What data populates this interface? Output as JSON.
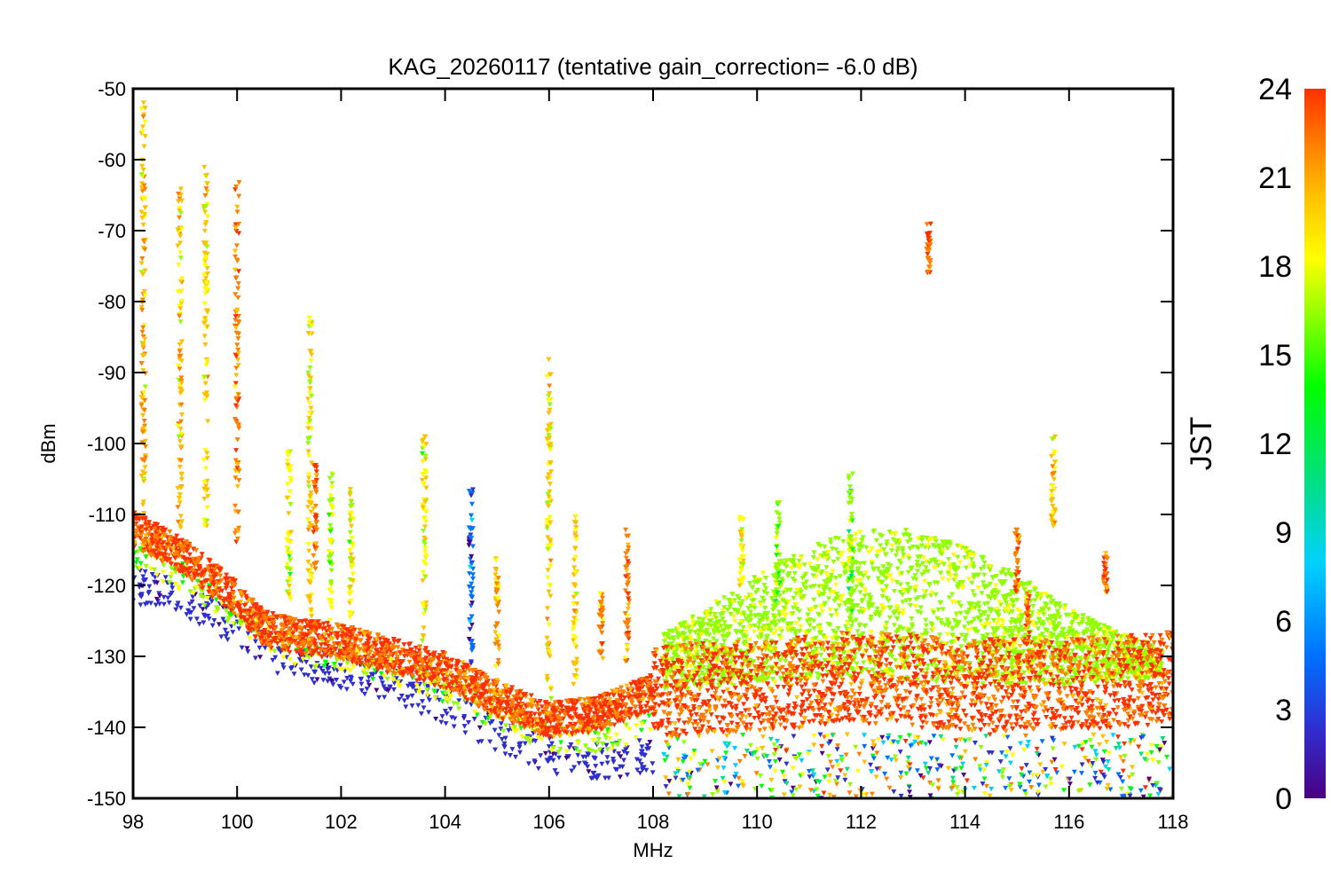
{
  "chart_data": {
    "type": "scatter",
    "title": "KAG_20260117 (tentative gain_correction= -6.0 dB)",
    "xlabel": "MHz",
    "ylabel": "dBm",
    "xlim": [
      98,
      118
    ],
    "ylim": [
      -150,
      -50
    ],
    "xticks": [
      98,
      100,
      102,
      104,
      106,
      108,
      110,
      112,
      114,
      116,
      118
    ],
    "yticks": [
      -50,
      -60,
      -70,
      -80,
      -90,
      -100,
      -110,
      -120,
      -130,
      -140,
      -150
    ],
    "colorbar": {
      "label": "JST",
      "range": [
        0,
        24
      ],
      "ticks": [
        0,
        3,
        6,
        9,
        12,
        15,
        18,
        21,
        24
      ],
      "colormap": [
        "#4b0082",
        "#2f2fd0",
        "#0070ff",
        "#00d0ff",
        "#00e080",
        "#00ff00",
        "#90ff00",
        "#ffff00",
        "#ffc000",
        "#ff8000",
        "#ff3000"
      ]
    },
    "noise_floor_profile": {
      "x": [
        98,
        99,
        100,
        100.5,
        101,
        102,
        103,
        104,
        105,
        106,
        107,
        108,
        110,
        112,
        114,
        116,
        118
      ],
      "y": [
        -112,
        -116,
        -122,
        -126,
        -127,
        -128,
        -130,
        -132,
        -136,
        -139,
        -138,
        -135,
        -134,
        -133,
        -134,
        -134,
        -133
      ]
    },
    "night_floor_profile": {
      "x": [
        98,
        99,
        100,
        101,
        102,
        103,
        104,
        105,
        106,
        107,
        108
      ],
      "y": [
        -120,
        -122,
        -126,
        -131,
        -132,
        -134,
        -137,
        -141,
        -144,
        -145,
        -144
      ]
    },
    "daytime_hump": {
      "x_start": 108.2,
      "x_end": 117.8,
      "peak_x": 112.5,
      "peak_y": -112,
      "color_jst": 15
    },
    "emissions": [
      {
        "f": 98.2,
        "top": -51,
        "bottom": -110,
        "jst": 20
      },
      {
        "f": 98.9,
        "top": -64,
        "bottom": -112,
        "jst": 20
      },
      {
        "f": 99.4,
        "top": -61,
        "bottom": -112,
        "jst": 19
      },
      {
        "f": 100.0,
        "top": -63,
        "bottom": -114,
        "jst": 22
      },
      {
        "f": 101.0,
        "top": -101,
        "bottom": -122,
        "jst": 17
      },
      {
        "f": 101.4,
        "top": -82,
        "bottom": -125,
        "jst": 19
      },
      {
        "f": 101.5,
        "top": -103,
        "bottom": -118,
        "jst": 23
      },
      {
        "f": 101.8,
        "top": -104,
        "bottom": -125,
        "jst": 16
      },
      {
        "f": 102.2,
        "top": -106,
        "bottom": -126,
        "jst": 18
      },
      {
        "f": 103.6,
        "top": -99,
        "bottom": -128,
        "jst": 18
      },
      {
        "f": 104.5,
        "top": -106,
        "bottom": -131,
        "jst": 5
      },
      {
        "f": 105.0,
        "top": -116,
        "bottom": -134,
        "jst": 21
      },
      {
        "f": 106.0,
        "top": -88,
        "bottom": -136,
        "jst": 19
      },
      {
        "f": 106.5,
        "top": -110,
        "bottom": -134,
        "jst": 19
      },
      {
        "f": 107.0,
        "top": -121,
        "bottom": -131,
        "jst": 22
      },
      {
        "f": 107.5,
        "top": -112,
        "bottom": -131,
        "jst": 22
      },
      {
        "f": 109.7,
        "top": -110,
        "bottom": -123,
        "jst": 18
      },
      {
        "f": 110.4,
        "top": -108,
        "bottom": -123,
        "jst": 15
      },
      {
        "f": 111.8,
        "top": -104,
        "bottom": -126,
        "jst": 15
      },
      {
        "f": 113.3,
        "top": -69,
        "bottom": -76,
        "jst": 23
      },
      {
        "f": 115.0,
        "top": -112,
        "bottom": -121,
        "jst": 23
      },
      {
        "f": 115.2,
        "top": -121,
        "bottom": -131,
        "jst": 23
      },
      {
        "f": 115.7,
        "top": -99,
        "bottom": -112,
        "jst": 20
      },
      {
        "f": 116.7,
        "top": -115,
        "bottom": -121,
        "jst": 23
      }
    ]
  }
}
